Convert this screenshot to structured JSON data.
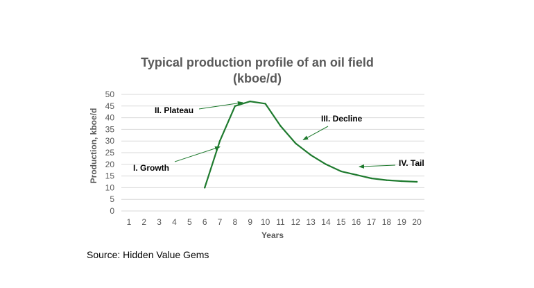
{
  "chart_data": {
    "type": "line",
    "title_lines": [
      "Typical production profile of an oil field",
      "(kboe/d)"
    ],
    "xlabel": "Years",
    "ylabel": "Production, kboe/d",
    "x_ticks": [
      1,
      2,
      3,
      4,
      5,
      6,
      7,
      8,
      9,
      10,
      11,
      12,
      13,
      14,
      15,
      16,
      17,
      18,
      19,
      20
    ],
    "y_ticks": [
      0,
      5,
      10,
      15,
      20,
      25,
      30,
      35,
      40,
      45,
      50
    ],
    "ylim": [
      0,
      50
    ],
    "grid": true,
    "legend": "none",
    "series": [
      {
        "color": "#1e7a2e",
        "x": [
          6,
          7,
          8,
          9,
          10,
          11,
          12,
          13,
          14,
          15,
          16,
          17,
          18,
          19,
          20
        ],
        "y": [
          10,
          30,
          45,
          47,
          46,
          36.5,
          29,
          24,
          20,
          17,
          15.5,
          14,
          13.2,
          12.8,
          12.5
        ]
      }
    ],
    "annotations": [
      {
        "text": "I. Growth",
        "point": [
          7.0,
          27.5
        ]
      },
      {
        "text": "II. Plateau",
        "point": [
          8.5,
          46.5
        ]
      },
      {
        "text": "III. Decline",
        "point": [
          12.5,
          30.5
        ]
      },
      {
        "text": "IV. Tail",
        "point": [
          16.2,
          19.0
        ]
      }
    ]
  },
  "source": "Source: Hidden Value Gems",
  "colors": {
    "line": "#1e7a2e",
    "grid": "#d9d9d9",
    "text": "#595959"
  }
}
